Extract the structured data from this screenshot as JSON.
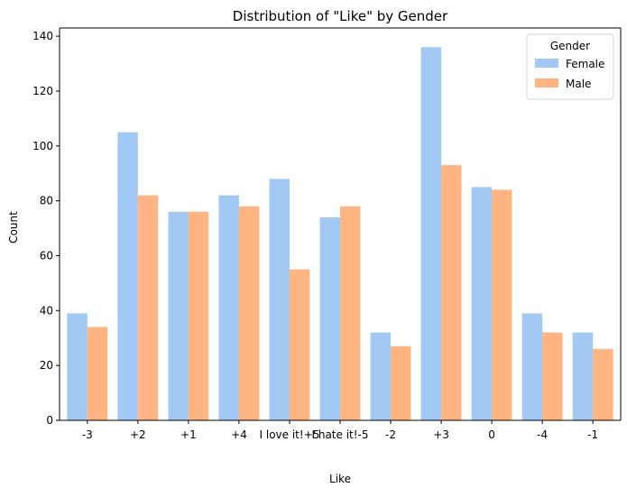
{
  "chart_data": {
    "type": "bar",
    "title": "Distribution of \"Like\" by Gender",
    "xlabel": "Like",
    "ylabel": "Count",
    "ylim": [
      0,
      143
    ],
    "yticks": [
      0,
      20,
      40,
      60,
      80,
      100,
      120,
      140
    ],
    "categories": [
      "-3",
      "+2",
      "+1",
      "+4",
      "I love it!+5",
      "I hate it!-5",
      "-2",
      "+3",
      "0",
      "-4",
      "-1"
    ],
    "series": [
      {
        "name": "Female",
        "color": "#a1c9f4",
        "values": [
          39,
          105,
          76,
          82,
          88,
          74,
          32,
          136,
          85,
          39,
          32
        ]
      },
      {
        "name": "Male",
        "color": "#ffb482",
        "values": [
          34,
          82,
          76,
          78,
          55,
          78,
          27,
          93,
          84,
          32,
          26
        ]
      }
    ],
    "legend": {
      "title": "Gender",
      "placement": "top-right"
    },
    "grid": false
  }
}
